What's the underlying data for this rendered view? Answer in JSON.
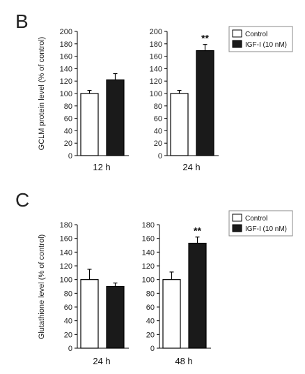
{
  "chart_data": [
    {
      "panel": "B",
      "type": "bar",
      "ylabel": "GCLM protein level (% of control)",
      "ylim": [
        0,
        200
      ],
      "yticks": [
        0,
        20,
        40,
        60,
        80,
        100,
        120,
        140,
        160,
        180,
        200
      ],
      "legend_position": "top-right",
      "series_names": [
        "Control",
        "IGF-I (10 nM)"
      ],
      "colors": {
        "control": "#ffffff",
        "igf": "#1a1a1a"
      },
      "groups": [
        {
          "label": "12 h",
          "values": [
            100,
            122
          ],
          "errors": [
            5,
            10
          ],
          "sig": ""
        },
        {
          "label": "24 h",
          "values": [
            100,
            169
          ],
          "errors": [
            5,
            10
          ],
          "sig": "**"
        }
      ]
    },
    {
      "panel": "C",
      "type": "bar",
      "ylabel": "Glutathione level (% of control)",
      "ylim": [
        0,
        180
      ],
      "yticks": [
        0,
        20,
        40,
        60,
        80,
        100,
        120,
        140,
        160,
        180
      ],
      "legend_position": "top-right",
      "series_names": [
        "Control",
        "IGF-I (10 nM)"
      ],
      "colors": {
        "control": "#ffffff",
        "igf": "#1a1a1a"
      },
      "groups": [
        {
          "label": "24 h",
          "values": [
            100,
            90
          ],
          "errors": [
            15,
            5
          ],
          "sig": ""
        },
        {
          "label": "48 h",
          "values": [
            100,
            153
          ],
          "errors": [
            11,
            9
          ],
          "sig": "**"
        }
      ]
    }
  ]
}
